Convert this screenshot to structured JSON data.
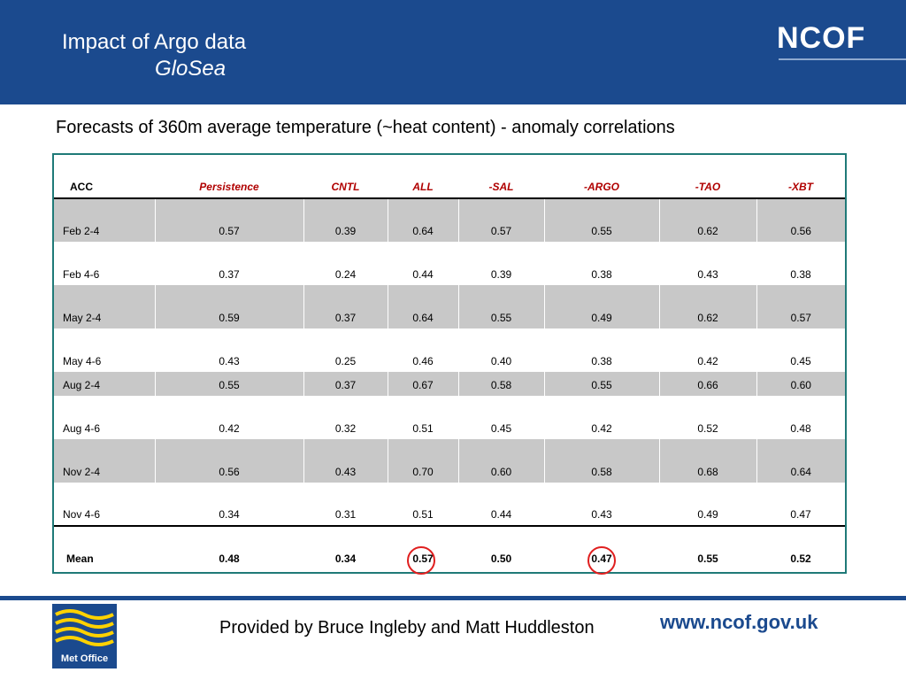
{
  "header": {
    "title_line1": "Impact of Argo data",
    "title_line2": "GloSea",
    "logo_text": "NCOF",
    "background_color": "#1b4a8e"
  },
  "subtitle": "Forecasts of 360m average temperature (~heat content)  - anomaly correlations",
  "table": {
    "row_header_label": "ACC",
    "columns": [
      "Persistence",
      "CNTL",
      "ALL",
      "-SAL",
      "-ARGO",
      "-TAO",
      "-XBT"
    ],
    "rows": [
      {
        "label": "Feb 2-4",
        "values": [
          "0.57",
          "0.39",
          "0.64",
          "0.57",
          "0.55",
          "0.62",
          "0.56"
        ]
      },
      {
        "label": "Feb 4-6",
        "values": [
          "0.37",
          "0.24",
          "0.44",
          "0.39",
          "0.38",
          "0.43",
          "0.38"
        ]
      },
      {
        "label": "May 2-4",
        "values": [
          "0.59",
          "0.37",
          "0.64",
          "0.55",
          "0.49",
          "0.62",
          "0.57"
        ]
      },
      {
        "label": "May 4-6",
        "values": [
          "0.43",
          "0.25",
          "0.46",
          "0.40",
          "0.38",
          "0.42",
          "0.45"
        ]
      },
      {
        "label": "Aug 2-4",
        "values": [
          "0.55",
          "0.37",
          "0.67",
          "0.58",
          "0.55",
          "0.66",
          "0.60"
        ]
      },
      {
        "label": "Aug 4-6",
        "values": [
          "0.42",
          "0.32",
          "0.51",
          "0.45",
          "0.42",
          "0.52",
          "0.48"
        ]
      },
      {
        "label": "Nov 2-4",
        "values": [
          "0.56",
          "0.43",
          "0.70",
          "0.60",
          "0.58",
          "0.68",
          "0.64"
        ]
      },
      {
        "label": "Nov 4-6",
        "values": [
          "0.34",
          "0.31",
          "0.51",
          "0.44",
          "0.43",
          "0.49",
          "0.47"
        ]
      }
    ],
    "mean": {
      "label": "Mean",
      "values": [
        "0.48",
        "0.34",
        "0.57",
        "0.50",
        "0.47",
        "0.55",
        "0.52"
      ]
    },
    "header_color": "#b00000",
    "shaded_row_color": "#c8c8c8",
    "highlight_circle_color": "#e02020"
  },
  "footer": {
    "logo_text": "Met Office",
    "credit": "Provided by Bruce Ingleby and Matt Huddleston",
    "url": "www.ncof.gov.uk"
  }
}
